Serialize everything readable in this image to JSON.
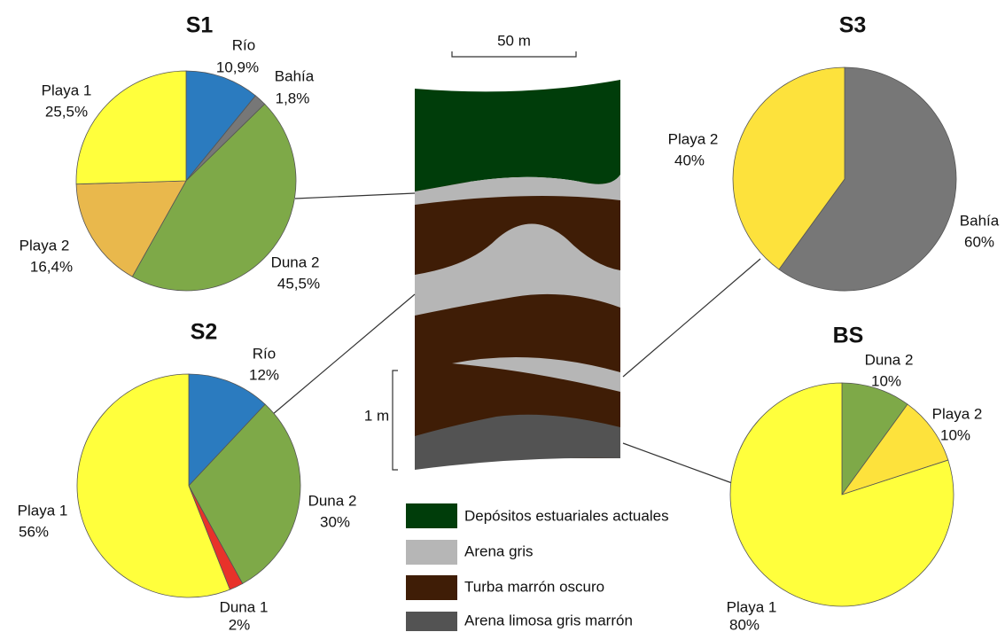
{
  "chart_data": [
    {
      "type": "pie",
      "title": "S1",
      "categories": [
        "Río",
        "Bahía",
        "Duna 2",
        "Playa 2",
        "Playa 1"
      ],
      "values": [
        10.9,
        1.8,
        45.5,
        16.4,
        25.5
      ],
      "value_labels": [
        "10,9%",
        "1,8%",
        "45,5%",
        "16,4%",
        "25,5%"
      ],
      "colors": [
        "#2b7bbf",
        "#777777",
        "#7ea948",
        "#e9b84c",
        "#ffff3c"
      ]
    },
    {
      "type": "pie",
      "title": "S2",
      "categories": [
        "Río",
        "Duna 2",
        "Duna 1",
        "Playa 1"
      ],
      "values": [
        12,
        30,
        2,
        56
      ],
      "value_labels": [
        "12%",
        "30%",
        "2%",
        "56%"
      ],
      "colors": [
        "#2b7bbf",
        "#7ea948",
        "#e8322a",
        "#ffff3c"
      ]
    },
    {
      "type": "pie",
      "title": "S3",
      "categories": [
        "Bahía",
        "Playa 2"
      ],
      "values": [
        60,
        40
      ],
      "value_labels": [
        "60%",
        "40%"
      ],
      "colors": [
        "#777777",
        "#fde23c"
      ]
    },
    {
      "type": "pie",
      "title": "BS",
      "categories": [
        "Duna 2",
        "Playa 2",
        "Playa 1"
      ],
      "values": [
        10,
        10,
        80
      ],
      "value_labels": [
        "10%",
        "10%",
        "80%"
      ],
      "colors": [
        "#7ea948",
        "#fde23c",
        "#ffff3c"
      ]
    }
  ],
  "diagram": {
    "scale_bar": "50 m",
    "depth_bar": "1 m",
    "legend": [
      "Depósitos estuariales actuales",
      "Arena gris",
      "Turba marrón oscuro",
      "Arena limosa gris marrón"
    ]
  }
}
